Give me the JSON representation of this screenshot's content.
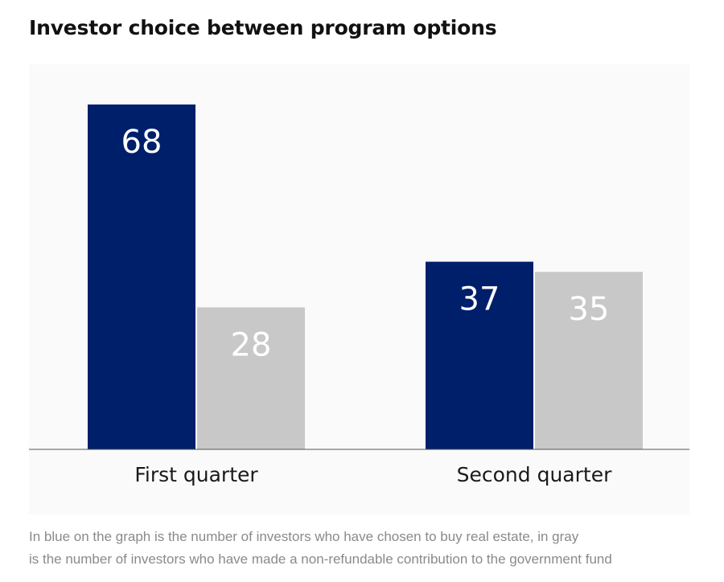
{
  "title": "Investor choice between program options",
  "caption": {
    "line1": "In blue on the graph is the number of investors who have chosen to buy real estate, in gray",
    "line2": "is the number of investors who have made a non-refundable contribution to the government fund"
  },
  "colors": {
    "real_estate": "#001f6b",
    "government_fund": "#c8c8c8",
    "axis": "#555555",
    "plot_background": "#fafafa"
  },
  "chart_data": {
    "type": "bar",
    "title": "Investor choice between program options",
    "categories": [
      "First quarter",
      "Second quarter"
    ],
    "series": [
      {
        "values": [
          68,
          37
        ],
        "color": "#001f6b"
      },
      {
        "values": [
          28,
          35
        ],
        "color": "#c8c8c8"
      }
    ],
    "data_labels": true,
    "legend": "none",
    "grid": false,
    "ylim": [
      0,
      68
    ]
  }
}
